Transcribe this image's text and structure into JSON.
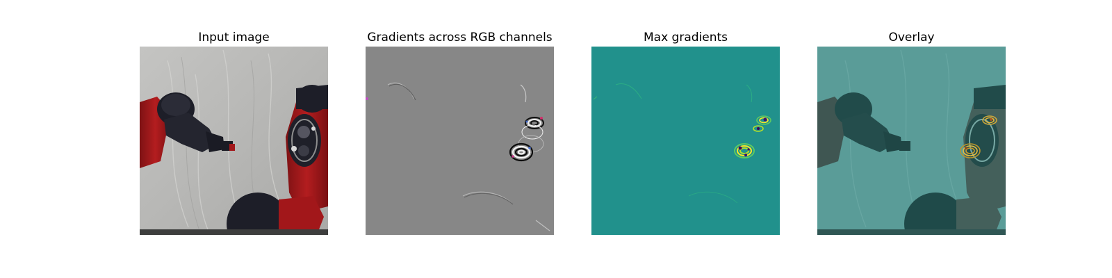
{
  "panels": [
    {
      "title": "Input image"
    },
    {
      "title": "Gradients across RGB channels"
    },
    {
      "title": "Max gradients"
    },
    {
      "title": "Overlay"
    }
  ],
  "colors": {
    "cloth_background": "#b9b9b7",
    "robot_red": "#a2171a",
    "gripper_dark": "#1d1e28",
    "gradient_gray": "#878787",
    "max_gradient_teal": "#21918c",
    "overlay_teal": "#3f8985",
    "highlight_yellow": "#fde725"
  },
  "icons": {
    "input": "robot-arm-photo",
    "rgb_gradients": "rgb-gradient-map",
    "max_gradients": "max-gradient-heatmap",
    "overlay": "gradient-overlay-photo"
  }
}
